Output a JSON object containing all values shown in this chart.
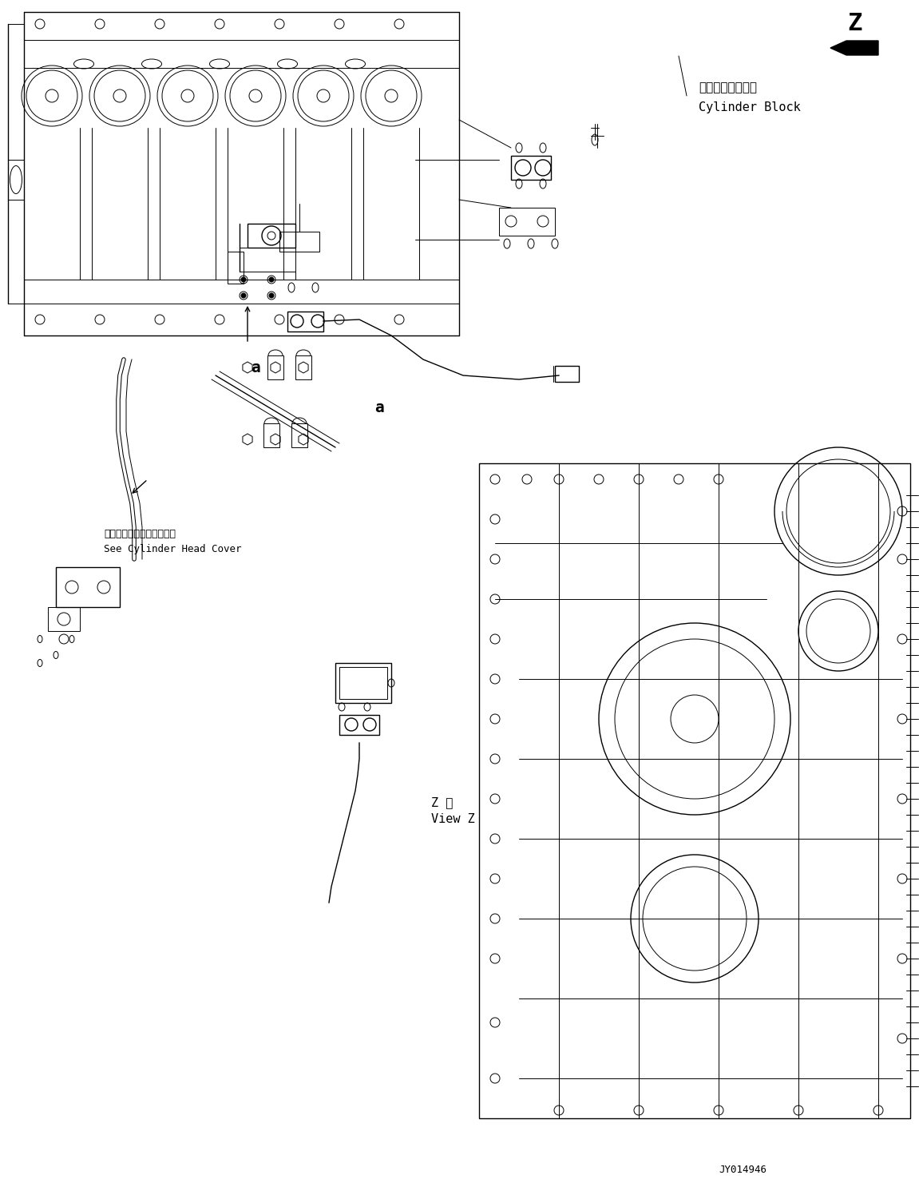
{
  "figure_width": 11.51,
  "figure_height": 14.91,
  "dpi": 100,
  "background_color": "#ffffff",
  "part_number": "JY014946",
  "label_z": "Z",
  "label_cylinder_block_jp": "シリンダブロック",
  "label_cylinder_block_en": "Cylinder Block",
  "label_arrow_a1": "a",
  "label_arrow_a2": "a",
  "label_see_jp": "シリンダヘッドカバー参照",
  "label_see_en": "See Cylinder Head Cover",
  "label_view_z_jp": "Z 視",
  "label_view_z_en": "View Z",
  "line_color": "#000000",
  "text_color": "#000000",
  "font_size_main": 11,
  "font_size_small": 9,
  "font_size_large": 18
}
